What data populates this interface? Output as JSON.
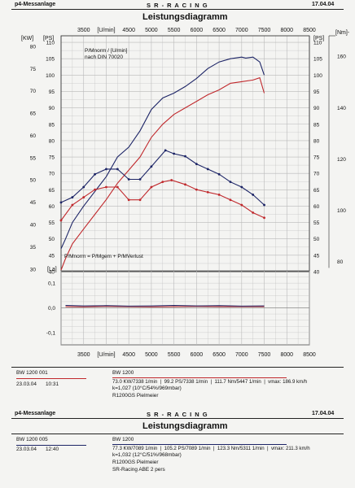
{
  "header": {
    "left_label": "p4-Messanlage",
    "brand": "S R - R A C I N G",
    "date": "17.04.04",
    "title": "Leistungsdiagramm"
  },
  "colors": {
    "run1": "#c0282c",
    "run2": "#1c2466",
    "axis": "#222222",
    "grid": "#b9b9b9",
    "paper": "#f4f4f2"
  },
  "chart_data": [
    {
      "type": "line",
      "title": "Leistungsdiagramm",
      "xlabel": "[U/min]",
      "x_ticks": [
        "3500",
        "[U/min]",
        "4500",
        "5000",
        "5500",
        "6000",
        "6500",
        "7000",
        "7500",
        "8000",
        "8500"
      ],
      "xlim": [
        3000,
        8500
      ],
      "left_kw_ticks": [
        "30",
        "35",
        "40",
        "45",
        "50",
        "55",
        "60",
        "65",
        "70",
        "75",
        "80"
      ],
      "left_kw_label": "[KW]",
      "left_ps_ticks": [
        "40",
        "45",
        "50",
        "55",
        "60",
        "65",
        "70",
        "75",
        "80",
        "85",
        "90",
        "95",
        "100",
        "105",
        "110"
      ],
      "left_ps_label": "[PS]",
      "right_ps_ticks": [
        "40",
        "45",
        "50",
        "55",
        "60",
        "65",
        "70",
        "75",
        "80",
        "85",
        "90",
        "95",
        "100",
        "105",
        "110"
      ],
      "right_ps_label": "[PS]",
      "ylim_ps": [
        40,
        112
      ],
      "right_nm_ticks": [
        "80",
        "100",
        "120",
        "140",
        "160"
      ],
      "right_nm_label": "[Nm]-",
      "nm_lim": [
        76,
        168
      ],
      "annotations": [
        "P/Mnorm / [U/min]",
        "nach DIN 70020",
        "P/Mnorm = P/Mgem + P/MVerlust"
      ],
      "grid": true,
      "series": [
        {
          "name": "BW 1200 001",
          "quantity": "power",
          "color": "#c0282c",
          "x": [
            3000,
            3100,
            3250,
            3500,
            3750,
            4000,
            4250,
            4500,
            4750,
            5000,
            5250,
            5500,
            5750,
            6000,
            6250,
            6500,
            6750,
            7000,
            7250,
            7400,
            7500
          ],
          "values": [
            40.5,
            44,
            48.5,
            53,
            57.5,
            62,
            67,
            71,
            75,
            81,
            85,
            88,
            90,
            92,
            94,
            95.5,
            97.5,
            98,
            98.5,
            99.2,
            94.5
          ]
        },
        {
          "name": "BW 1200 005",
          "quantity": "power",
          "color": "#1c2466",
          "x": [
            3000,
            3100,
            3250,
            3500,
            3750,
            4000,
            4250,
            4500,
            4750,
            5000,
            5250,
            5500,
            5750,
            6000,
            6250,
            6500,
            6750,
            7000,
            7089,
            7250,
            7400,
            7500
          ],
          "values": [
            47,
            50,
            55,
            60,
            64.5,
            69,
            75,
            78,
            83,
            89.5,
            93,
            94.5,
            96.5,
            99,
            102,
            104,
            105,
            105.5,
            105.2,
            105.5,
            104,
            100
          ]
        },
        {
          "name": "BW 1200 001",
          "quantity": "torque",
          "color": "#c0282c",
          "x": [
            3000,
            3250,
            3500,
            3750,
            4000,
            4250,
            4500,
            4750,
            5000,
            5250,
            5447,
            5750,
            6000,
            6250,
            6500,
            6750,
            7000,
            7250,
            7500
          ],
          "values": [
            96,
            102,
            105,
            108,
            109,
            109,
            104,
            104,
            109,
            111,
            111.7,
            110,
            108,
            107,
            106,
            104,
            102,
            99,
            97
          ]
        },
        {
          "name": "BW 1200 005",
          "quantity": "torque",
          "color": "#1c2466",
          "x": [
            3000,
            3250,
            3500,
            3750,
            4000,
            4250,
            4500,
            4750,
            5000,
            5311,
            5500,
            5750,
            6000,
            6250,
            6500,
            6750,
            7000,
            7250,
            7500
          ],
          "values": [
            103,
            105,
            109,
            114,
            116,
            116,
            112,
            112,
            117,
            123.3,
            122,
            121,
            118,
            116,
            114,
            111,
            109,
            106,
            102
          ]
        }
      ]
    },
    {
      "type": "line",
      "title": "",
      "ylabel": "[La]",
      "y_ticks": [
        "0,1",
        "0,0",
        "-0,1"
      ],
      "x_ticks": [
        "3500",
        "[U/min]",
        "4500",
        "5000",
        "5500",
        "6000",
        "6500",
        "7000",
        "7500",
        "8000",
        "8500"
      ],
      "xlim": [
        3000,
        8500
      ],
      "ylim": [
        -0.15,
        0.15
      ],
      "grid": true,
      "series": [
        {
          "name": "BW 1200 001",
          "color": "#c0282c",
          "x": [
            3100,
            3500,
            4000,
            4500,
            5000,
            5500,
            6000,
            6500,
            7000,
            7500
          ],
          "values": [
            0.005,
            0.004,
            0.006,
            0.005,
            0.004,
            0.005,
            0.006,
            0.005,
            0.005,
            0.005
          ]
        },
        {
          "name": "BW 1200 005",
          "color": "#1c2466",
          "x": [
            3100,
            3500,
            4000,
            4500,
            5000,
            5500,
            6000,
            6500,
            7000,
            7500
          ],
          "values": [
            0.01,
            0.008,
            0.009,
            0.007,
            0.008,
            0.01,
            0.008,
            0.009,
            0.007,
            0.008
          ]
        }
      ]
    }
  ],
  "runs": [
    {
      "id": "BW 1200 001",
      "date": "23.03.04",
      "time": "10:31",
      "name": "BW 1200",
      "values_line": "73.0 KW/7338 1/min  |  99.2 PS/7338 1/min  |  111.7 Nm/5447 1/min  |  vmax: 186.9 km/h",
      "conditions": "k=1,027 (10°C/54%/969mbar)",
      "bike": "R1200GS Pielmeier",
      "extra": ""
    },
    {
      "id": "BW 1200 005",
      "date": "23.03.04",
      "time": "12:40",
      "name": "BW 1200",
      "values_line": "77.3 KW/7089 1/min  |  105.2 PS/7089 1/min  |  123.3 Nm/5311 1/min  |  vmax: 211.3 km/h",
      "conditions": "k=1,032 (12°C/51%/968mbar)",
      "bike": "R1200GS Pielmeier",
      "extra": "SR-Racing ABE 2 pers"
    }
  ],
  "second_page": {
    "left_label": "p4-Messanlage",
    "brand": "S R - R A C I N G",
    "date": "17.04.04",
    "title": "Leistungsdiagramm"
  }
}
